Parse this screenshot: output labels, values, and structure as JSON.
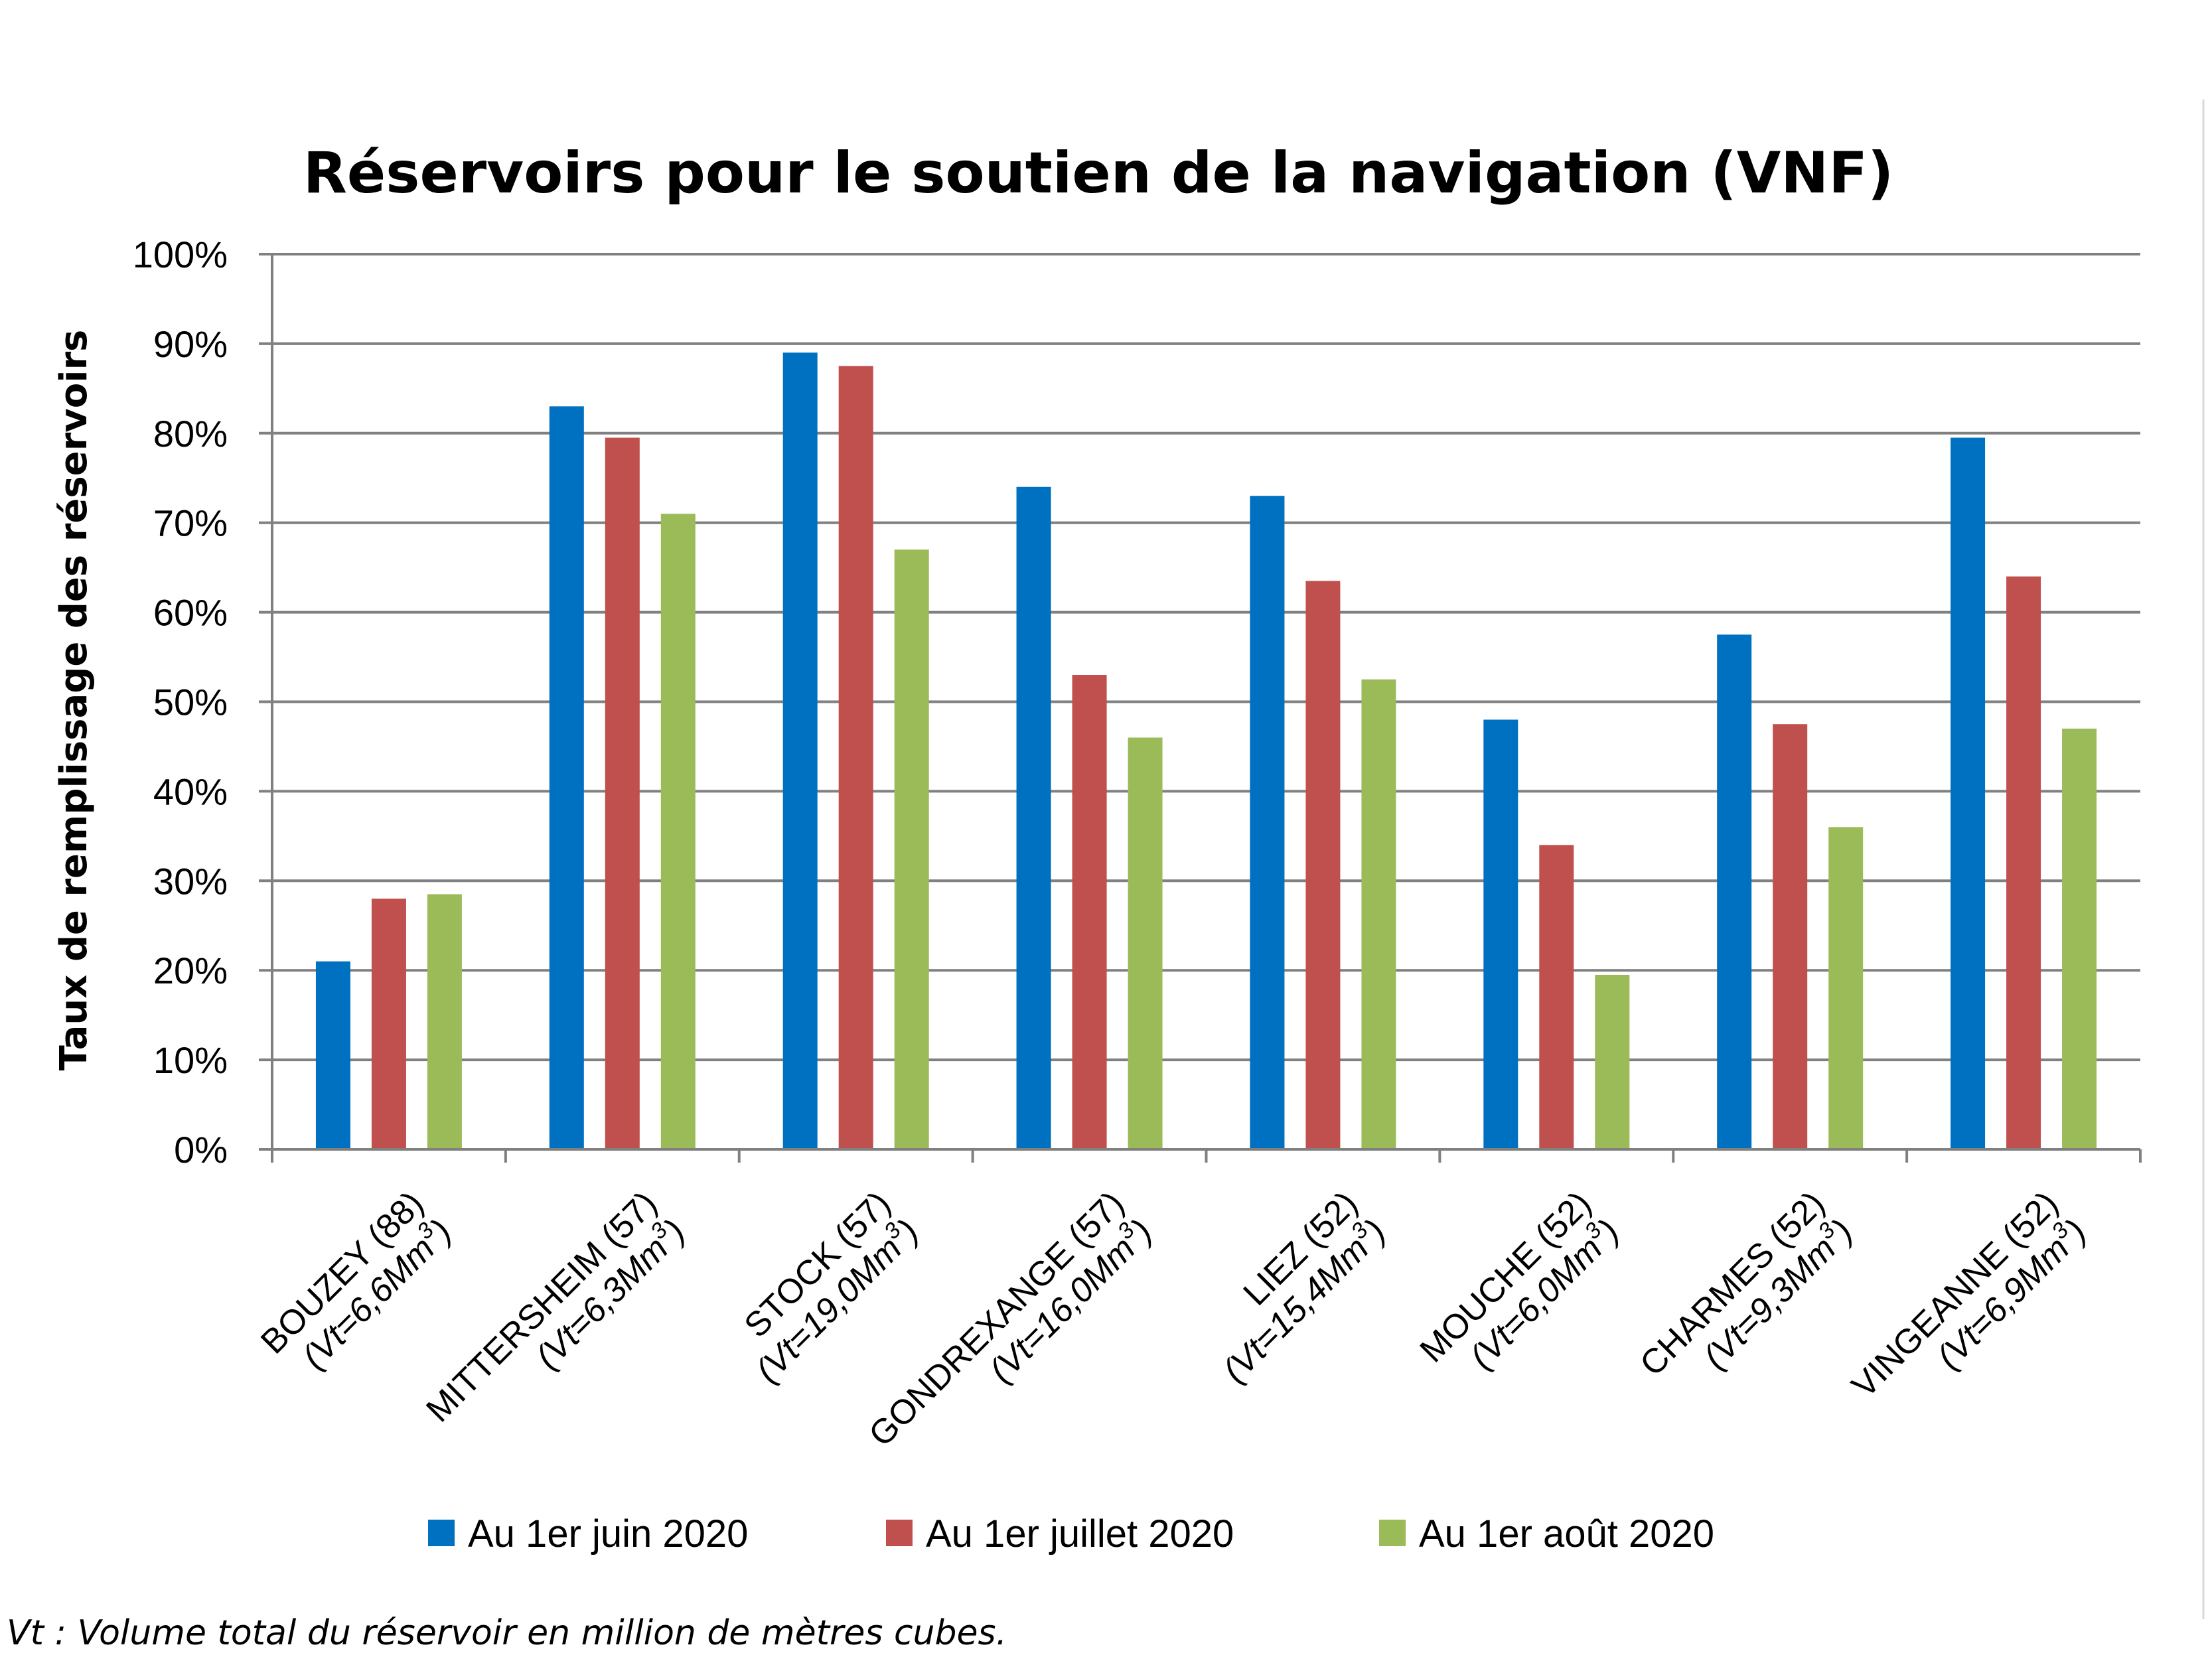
{
  "chart_data": {
    "type": "bar",
    "title": "Réservoirs pour le soutien de la navigation (VNF)",
    "ylabel": "Taux de remplissage des réservoirs",
    "xlabel": "",
    "ylim": [
      0,
      100
    ],
    "yticks": [
      "0%",
      "10%",
      "20%",
      "30%",
      "40%",
      "50%",
      "60%",
      "70%",
      "80%",
      "90%",
      "100%"
    ],
    "grid": true,
    "legend_position": "bottom",
    "categories": [
      {
        "name": "BOUZEY (88)",
        "volume": "(Vt=6,6Mm",
        "exp": "3",
        "close": ")"
      },
      {
        "name": "MITTERSHEIM (57)",
        "volume": "(Vt=6,3Mm",
        "exp": "3",
        "close": ")"
      },
      {
        "name": "STOCK (57)",
        "volume": "(Vt=19,0Mm",
        "exp": "3",
        "close": ")"
      },
      {
        "name": "GONDREXANGE (57)",
        "volume": "(Vt=16,0Mm",
        "exp": "3",
        "close": ")"
      },
      {
        "name": "LIEZ (52)",
        "volume": "(Vt=15,4Mm",
        "exp": "3",
        "close": ")"
      },
      {
        "name": "MOUCHE (52)",
        "volume": "(Vt=6,0Mm",
        "exp": "3",
        "close": ")"
      },
      {
        "name": "CHARMES (52)",
        "volume": "(Vt=9,3Mm",
        "exp": "3",
        "close": ")"
      },
      {
        "name": "VINGEANNE (52)",
        "volume": "(Vt=6,9Mm",
        "exp": "3",
        "close": ")"
      }
    ],
    "series": [
      {
        "name": "Au 1er juin 2020",
        "color": "#0070C0",
        "values": [
          21,
          83,
          89,
          74,
          73,
          48,
          57.5,
          79.5
        ]
      },
      {
        "name": "Au 1er juillet 2020",
        "color": "#C0504D",
        "values": [
          28,
          79.5,
          87.5,
          53,
          63.5,
          34,
          47.5,
          64
        ]
      },
      {
        "name": "Au 1er août 2020",
        "color": "#9BBB59",
        "values": [
          28.5,
          71,
          67,
          46,
          52.5,
          19.5,
          36,
          47
        ]
      }
    ],
    "gridline_color": "#808080",
    "footnote": "Vt : Volume total du réservoir en million de mètres cubes."
  }
}
